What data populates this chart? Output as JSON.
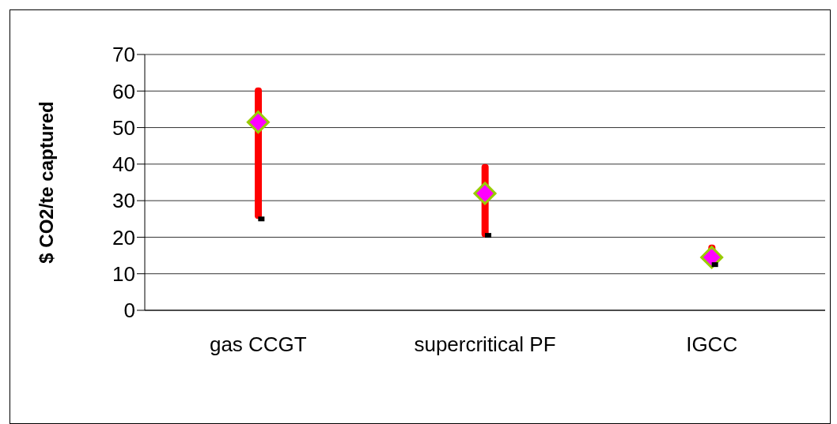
{
  "chart_data": {
    "type": "bar",
    "ylabel": "$ CO2/te captured",
    "categories": [
      "gas CCGT",
      "supercritical PF",
      "IGCC"
    ],
    "series": [
      {
        "color": "#ff0000",
        "base": [
          25,
          20,
          12
        ],
        "values": [
          36,
          20,
          6
        ]
      },
      {
        "type": "scatter",
        "color": "#ff00ff",
        "marker": "diamond",
        "values": [
          51.5,
          32,
          14.5
        ]
      },
      {
        "type": "scatter",
        "color": "#000000",
        "marker": "square",
        "values": [
          25,
          20.5,
          12.5
        ]
      }
    ],
    "ylim": [
      0,
      70
    ],
    "yticks": [
      0,
      10,
      20,
      30,
      40,
      50,
      60,
      70
    ],
    "grid": "y",
    "legend": false
  }
}
